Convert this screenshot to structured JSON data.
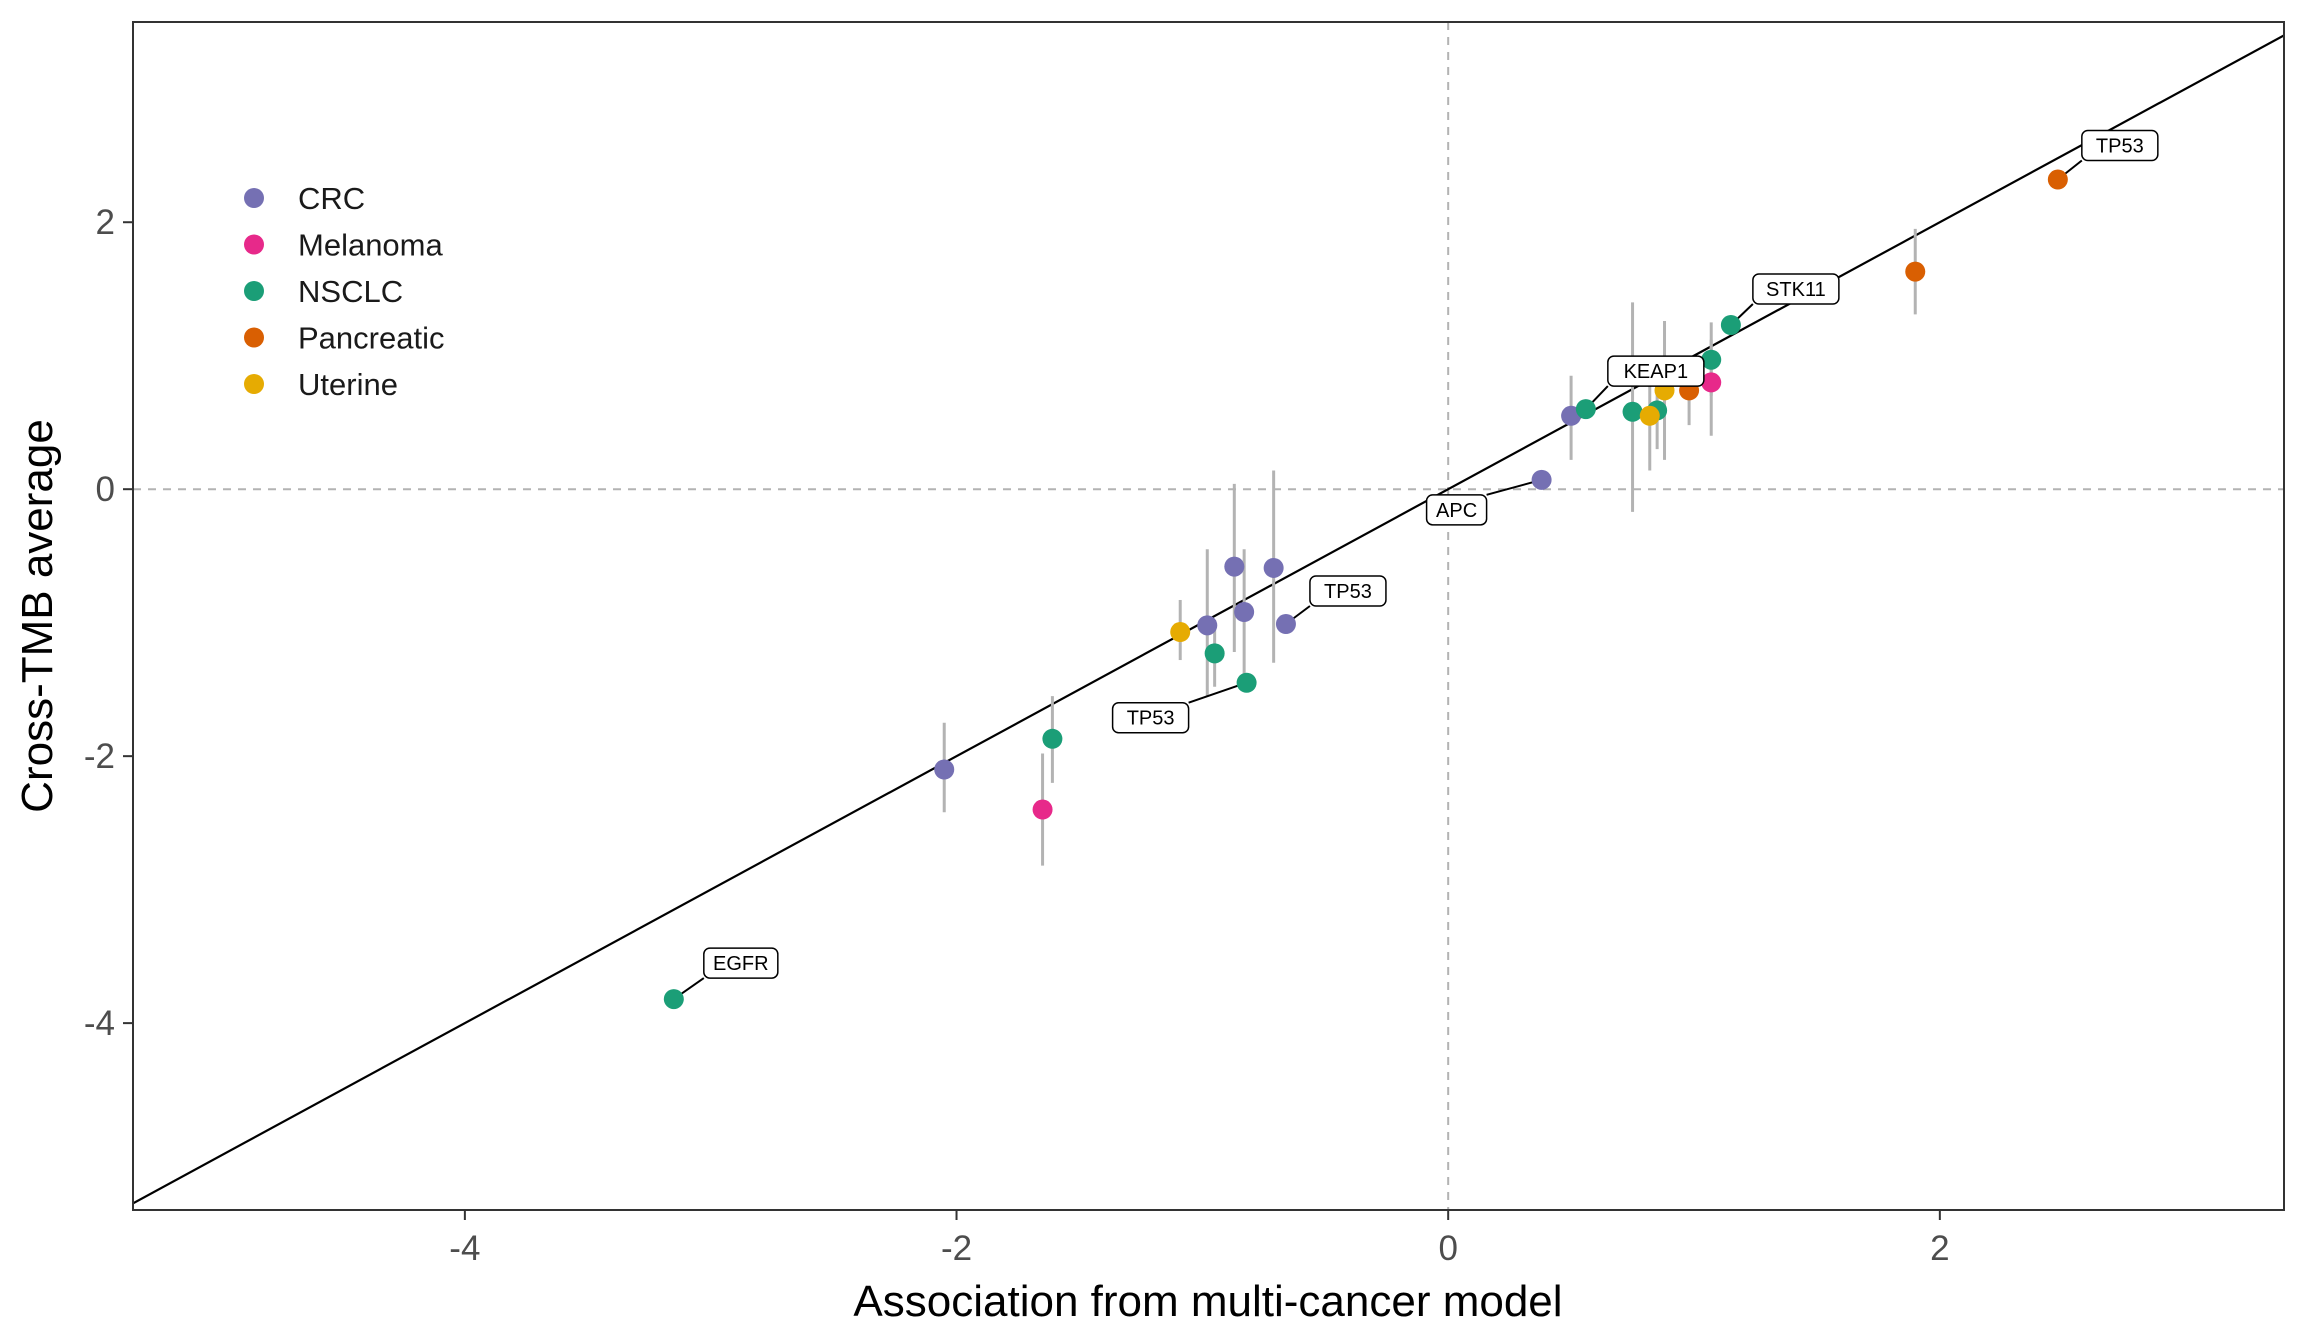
{
  "chart_data": {
    "type": "scatter",
    "title": "",
    "xlabel": "Association from multi-cancer model",
    "ylabel": "Cross-TMB average",
    "xlim": [
      -5.35,
      3.4
    ],
    "ylim": [
      -5.4,
      3.5
    ],
    "x_ticks": [
      -4,
      -2,
      0,
      2
    ],
    "y_ticks": [
      -4,
      -2,
      0,
      2
    ],
    "x_tick_labels": [
      "-4",
      "-2",
      "0",
      "2"
    ],
    "y_tick_labels": [
      "-4",
      "-2",
      "0",
      "2"
    ],
    "grid": false,
    "reference_lines": {
      "identity": true,
      "x_zero_dashed": true,
      "y_zero_dashed": true
    },
    "legend_position": "top-left",
    "series": [
      {
        "name": "CRC",
        "color": "#7570b3",
        "points": [
          {
            "x": -2.05,
            "y": -2.1,
            "lo": -2.42,
            "hi": -1.75
          },
          {
            "x": -0.98,
            "y": -1.02,
            "lo": -1.55,
            "hi": -0.45
          },
          {
            "x": -0.87,
            "y": -0.58,
            "lo": -1.22,
            "hi": 0.04
          },
          {
            "x": -0.83,
            "y": -0.92,
            "lo": -1.42,
            "hi": -0.45
          },
          {
            "x": -0.71,
            "y": -0.59,
            "lo": -1.3,
            "hi": 0.14
          },
          {
            "x": -0.66,
            "y": -1.01,
            "lo": -1.01,
            "hi": -1.01
          },
          {
            "x": 0.38,
            "y": 0.07,
            "lo": 0.07,
            "hi": 0.07
          },
          {
            "x": 0.5,
            "y": 0.55,
            "lo": 0.22,
            "hi": 0.85
          }
        ]
      },
      {
        "name": "Melanoma",
        "color": "#e7298a",
        "points": [
          {
            "x": -1.65,
            "y": -2.4,
            "lo": -2.82,
            "hi": -1.98
          },
          {
            "x": 1.07,
            "y": 0.8,
            "lo": 0.4,
            "hi": 1.12
          }
        ]
      },
      {
        "name": "NSCLC",
        "color": "#1b9e77",
        "points": [
          {
            "x": -3.15,
            "y": -3.82,
            "lo": -3.82,
            "hi": -3.82
          },
          {
            "x": -1.61,
            "y": -1.87,
            "lo": -2.2,
            "hi": -1.55
          },
          {
            "x": -0.95,
            "y": -1.23,
            "lo": -1.48,
            "hi": -0.98
          },
          {
            "x": -0.82,
            "y": -1.45,
            "lo": -1.45,
            "hi": -1.45
          },
          {
            "x": 0.56,
            "y": 0.6,
            "lo": 0.6,
            "hi": 0.6
          },
          {
            "x": 0.75,
            "y": 0.58,
            "lo": -0.17,
            "hi": 1.4
          },
          {
            "x": 0.85,
            "y": 0.59,
            "lo": 0.3,
            "hi": 0.9
          },
          {
            "x": 1.07,
            "y": 0.97,
            "lo": 0.7,
            "hi": 1.25
          },
          {
            "x": 1.15,
            "y": 1.23,
            "lo": 1.23,
            "hi": 1.23
          }
        ]
      },
      {
        "name": "Pancreatic",
        "color": "#d95f02",
        "points": [
          {
            "x": 0.98,
            "y": 0.74,
            "lo": 0.48,
            "hi": 0.98
          },
          {
            "x": 1.9,
            "y": 1.63,
            "lo": 1.31,
            "hi": 1.95
          },
          {
            "x": 2.48,
            "y": 2.32,
            "lo": 2.32,
            "hi": 2.32
          }
        ]
      },
      {
        "name": "Uterine",
        "color": "#e6ab02",
        "points": [
          {
            "x": -1.09,
            "y": -1.07,
            "lo": -1.28,
            "hi": -0.83
          },
          {
            "x": 0.82,
            "y": 0.55,
            "lo": 0.14,
            "hi": 0.93
          },
          {
            "x": 0.88,
            "y": 0.74,
            "lo": 0.22,
            "hi": 1.26
          }
        ]
      }
    ],
    "annotations": [
      {
        "label": "EGFR",
        "x": -3.15,
        "y": -3.82
      },
      {
        "label": "TP53",
        "x": -0.82,
        "y": -1.45
      },
      {
        "label": "TP53",
        "x": -0.66,
        "y": -1.01
      },
      {
        "label": "APC",
        "x": 0.38,
        "y": 0.07
      },
      {
        "label": "KEAP1",
        "x": 0.56,
        "y": 0.6
      },
      {
        "label": "STK11",
        "x": 1.15,
        "y": 1.23
      },
      {
        "label": "TP53",
        "x": 2.48,
        "y": 2.32
      }
    ]
  }
}
